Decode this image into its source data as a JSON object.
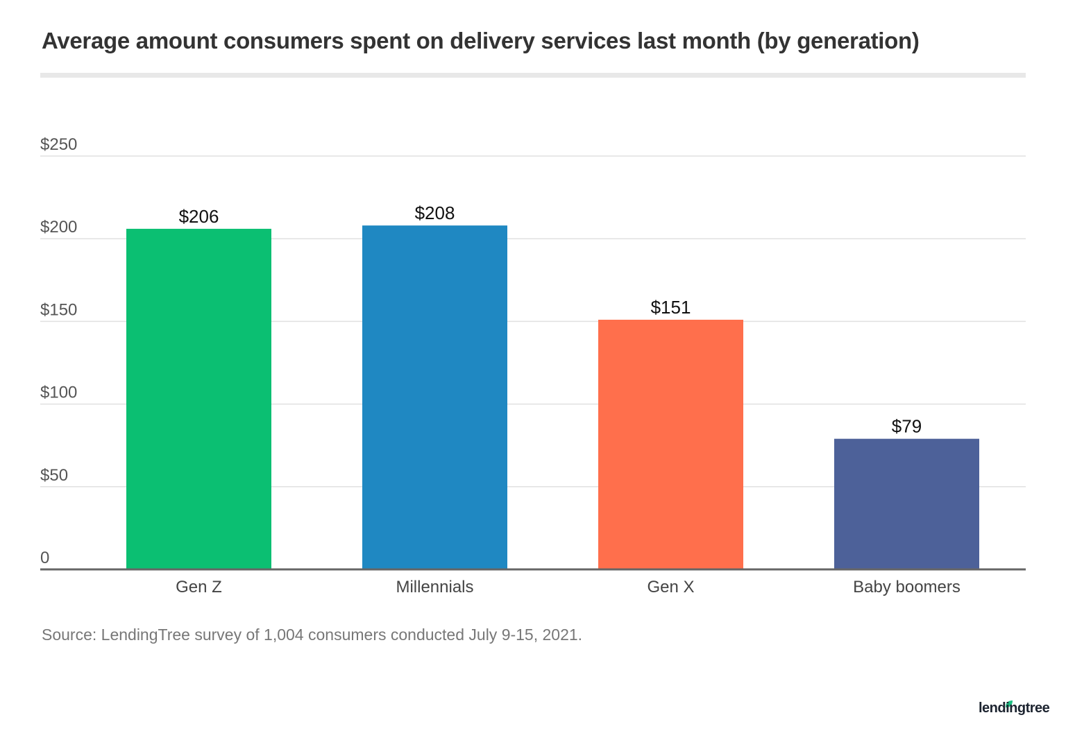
{
  "chart_data": {
    "type": "bar",
    "title": "Average amount consumers spent on delivery services last month (by generation)",
    "categories": [
      "Gen Z",
      "Millennials",
      "Gen X",
      "Baby boomers"
    ],
    "values": [
      206,
      208,
      151,
      79
    ],
    "data_labels": [
      "$206",
      "$208",
      "$151",
      "$79"
    ],
    "colors": [
      "#0bbf72",
      "#1f88c2",
      "#ff6f4c",
      "#4d6199"
    ],
    "ylim": [
      0,
      250
    ],
    "yticks": [
      0,
      50,
      100,
      150,
      200,
      250
    ],
    "ytick_labels": [
      "0",
      "$50",
      "$100",
      "$150",
      "$200",
      "$250"
    ],
    "xlabel": "",
    "ylabel": "",
    "grid": true,
    "legend": "none"
  },
  "source": "Source: LendingTree survey of 1,004 consumers conducted July 9-15, 2021.",
  "logo": "lendingtree"
}
